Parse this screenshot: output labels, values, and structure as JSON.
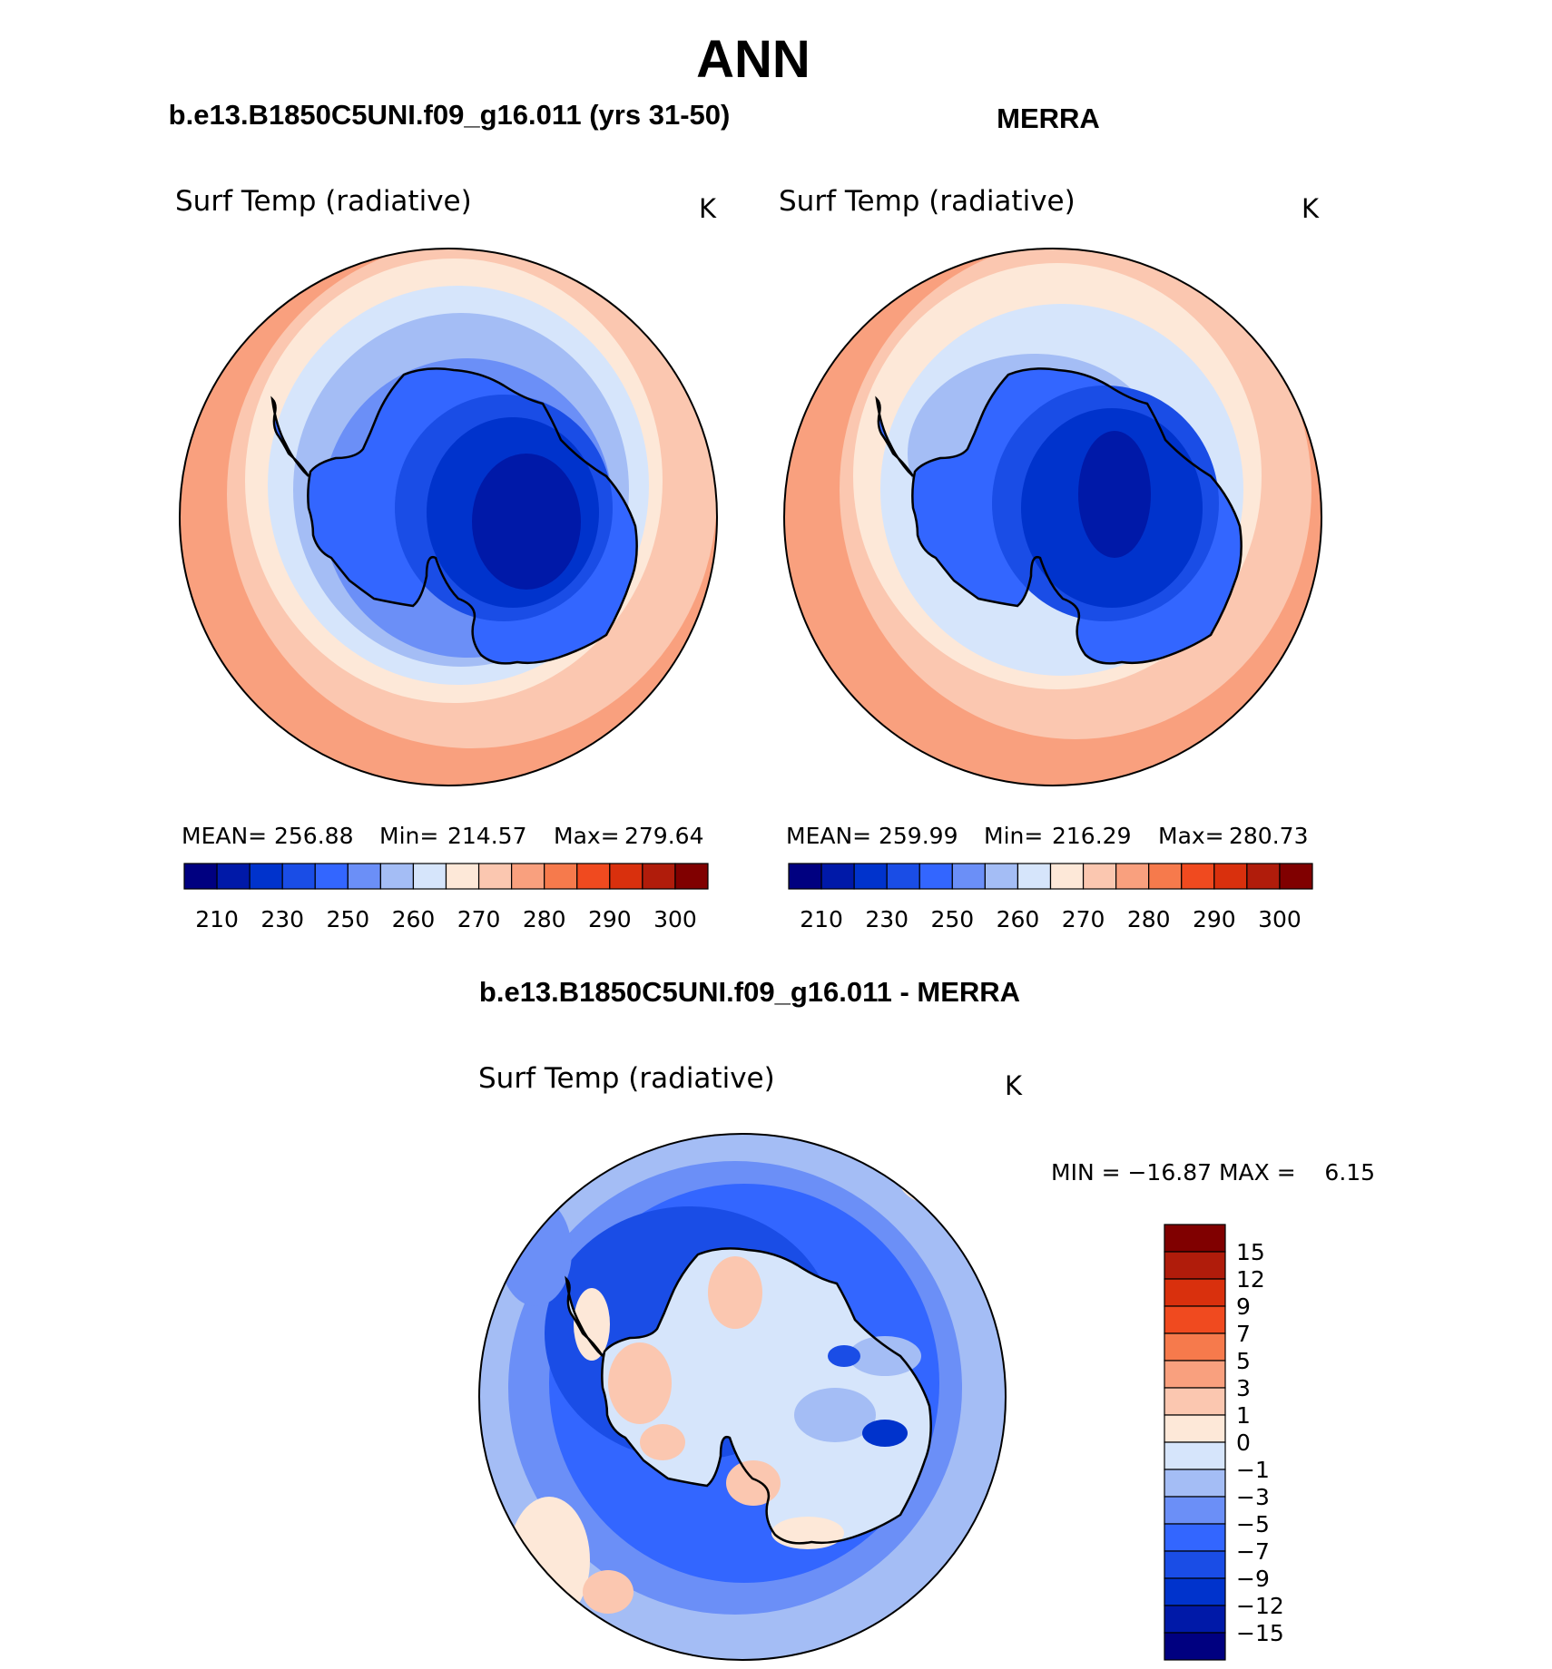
{
  "title": "ANN",
  "colors": {
    "abs_scale": [
      "#000080",
      "#0019a8",
      "#0033cc",
      "#1a4de6",
      "#3366ff",
      "#6b8ff7",
      "#a4bdf5",
      "#d6e5fb",
      "#fde8d8",
      "#fbc7b0",
      "#f9a07e",
      "#f67a4c",
      "#f04a1f",
      "#d9300d",
      "#b01c0b",
      "#800000"
    ],
    "diff_scale": [
      "#000080",
      "#0019a8",
      "#0033cc",
      "#1a4de6",
      "#3366ff",
      "#6b8ff7",
      "#a4bdf5",
      "#d6e5fb",
      "#fde8d8",
      "#fbc7b0",
      "#f9a07e",
      "#f67a4c",
      "#f04a1f",
      "#d9300d",
      "#b01c0b",
      "#800000"
    ],
    "coastline": "#000000"
  },
  "panels": {
    "model": {
      "header": "b.e13.B1850C5UNI.f09_g16.011 (yrs 31-50)",
      "var_label": "Surf Temp (radiative)",
      "units": "K",
      "stats": {
        "mean_label": "MEAN=",
        "mean": "256.88",
        "min_label": "Min=",
        "min": "214.57",
        "max_label": "Max=",
        "max": "279.64"
      }
    },
    "obs": {
      "header": "MERRA",
      "var_label": "Surf Temp (radiative)",
      "units": "K",
      "stats": {
        "mean_label": "MEAN=",
        "mean": "259.99",
        "min_label": "Min=",
        "min": "216.29",
        "max_label": "Max=",
        "max": "280.73"
      }
    },
    "diff": {
      "header": "b.e13.B1850C5UNI.f09_g16.011 - MERRA",
      "var_label": "Surf Temp (radiative)",
      "units": "K",
      "minmax": "MIN = −16.87 MAX =    6.15"
    }
  },
  "colorbar_abs": {
    "labels": [
      "210",
      "230",
      "250",
      "260",
      "270",
      "280",
      "290",
      "300"
    ]
  },
  "colorbar_diff": {
    "labels": [
      "15",
      "12",
      "9",
      "7",
      "5",
      "3",
      "1",
      "0",
      "−1",
      "−3",
      "−5",
      "−7",
      "−9",
      "−12",
      "−15"
    ]
  }
}
